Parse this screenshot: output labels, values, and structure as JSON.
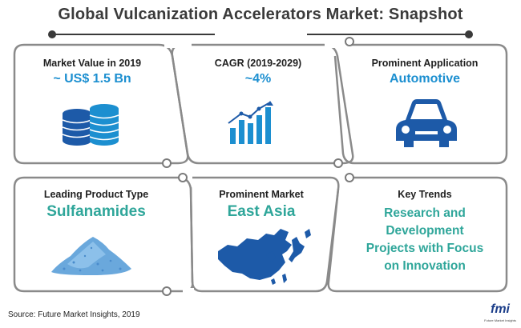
{
  "title": "Global Vulcanization Accelerators Market: Snapshot",
  "cards": {
    "market_value": {
      "label": "Market Value in 2019",
      "value": "~ US$ 1.5 Bn",
      "icon": "coin-stack-icon"
    },
    "cagr": {
      "label": "CAGR (2019-2029)",
      "value": "~4%",
      "icon": "bar-growth-chart-icon"
    },
    "application": {
      "label": "Prominent Application",
      "value": "Automotive",
      "icon": "car-icon"
    },
    "product": {
      "label": "Leading Product Type",
      "value": "Sulfanamides",
      "icon": "powder-pile-icon"
    },
    "market": {
      "label": "Prominent Market",
      "value": "East Asia",
      "icon": "east-asia-map-icon"
    },
    "trends": {
      "label": "Key Trends",
      "lines": [
        "Research and",
        "Development",
        "Projects with Focus",
        "on Innovation"
      ]
    }
  },
  "footer": {
    "source": "Source: Future Market Insights, 2019",
    "logo_text": "fmi",
    "logo_subtext": "Future Market Insights"
  },
  "colors": {
    "accent_blue": "#1c8fd0",
    "accent_teal": "#2fa69a",
    "icon_blue": "#1d5aa8",
    "frame_gray": "#8a8a8a",
    "title_dark": "#3a3a3a"
  }
}
